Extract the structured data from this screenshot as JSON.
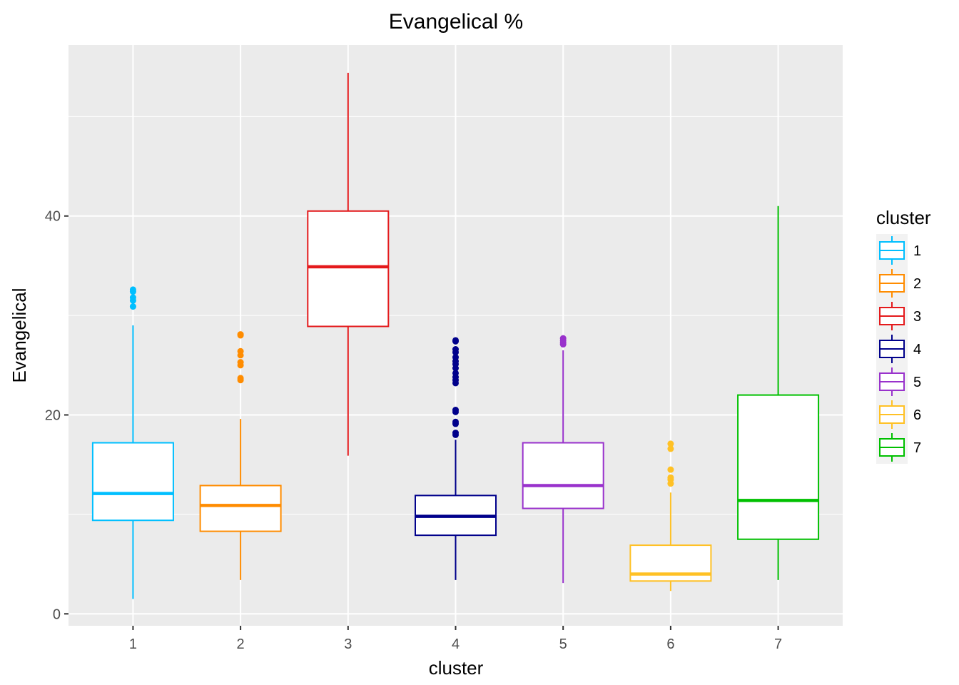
{
  "chart_data": {
    "type": "boxplot",
    "title": "Evangelical %",
    "xlabel": "cluster",
    "ylabel": "Evangelical",
    "ylim": [
      -1.2,
      57.2
    ],
    "yticks": [
      0,
      20,
      40
    ],
    "grid": true,
    "legend": {
      "title": "cluster",
      "placement": "right"
    },
    "categories": [
      "1",
      "2",
      "3",
      "4",
      "5",
      "6",
      "7"
    ],
    "boxes": [
      {
        "name": "1",
        "color": "#00bfff",
        "whisker_low": 1.5,
        "q1": 9.4,
        "median": 12.1,
        "q3": 17.2,
        "whisker_high": 29.0,
        "outliers": [
          30.9,
          31.5,
          31.8,
          32.4,
          32.6
        ]
      },
      {
        "name": "2",
        "color": "#ff8c00",
        "whisker_low": 3.4,
        "q1": 8.3,
        "median": 10.9,
        "q3": 12.9,
        "whisker_high": 19.6,
        "outliers": [
          23.5,
          23.7,
          25.0,
          25.3,
          26.0,
          26.4,
          28.0,
          28.1
        ]
      },
      {
        "name": "3",
        "color": "#e41a1c",
        "whisker_low": 15.9,
        "q1": 28.9,
        "median": 34.9,
        "q3": 40.5,
        "whisker_high": 54.4,
        "outliers": []
      },
      {
        "name": "4",
        "color": "#00008b",
        "whisker_low": 3.4,
        "q1": 7.9,
        "median": 9.8,
        "q3": 11.9,
        "whisker_high": 17.5,
        "outliers": [
          18.0,
          18.2,
          19.1,
          19.3,
          20.3,
          20.5,
          23.2,
          23.5,
          23.8,
          24.2,
          24.7,
          25.1,
          25.4,
          25.8,
          26.3,
          26.6,
          27.4,
          27.5
        ]
      },
      {
        "name": "5",
        "color": "#9932cc",
        "whisker_low": 3.1,
        "q1": 10.6,
        "median": 12.9,
        "q3": 17.2,
        "whisker_high": 26.5,
        "outliers": [
          27.1,
          27.3,
          27.5,
          27.7
        ]
      },
      {
        "name": "6",
        "color": "#ffc125",
        "whisker_low": 2.3,
        "q1": 3.3,
        "median": 4.0,
        "q3": 6.9,
        "whisker_high": 12.2,
        "outliers": [
          13.1,
          13.5,
          13.7,
          14.5,
          16.6,
          17.1
        ]
      },
      {
        "name": "7",
        "color": "#00c000",
        "whisker_low": 3.4,
        "q1": 7.5,
        "median": 11.4,
        "q3": 22.0,
        "whisker_high": 41.0,
        "outliers": []
      }
    ]
  }
}
